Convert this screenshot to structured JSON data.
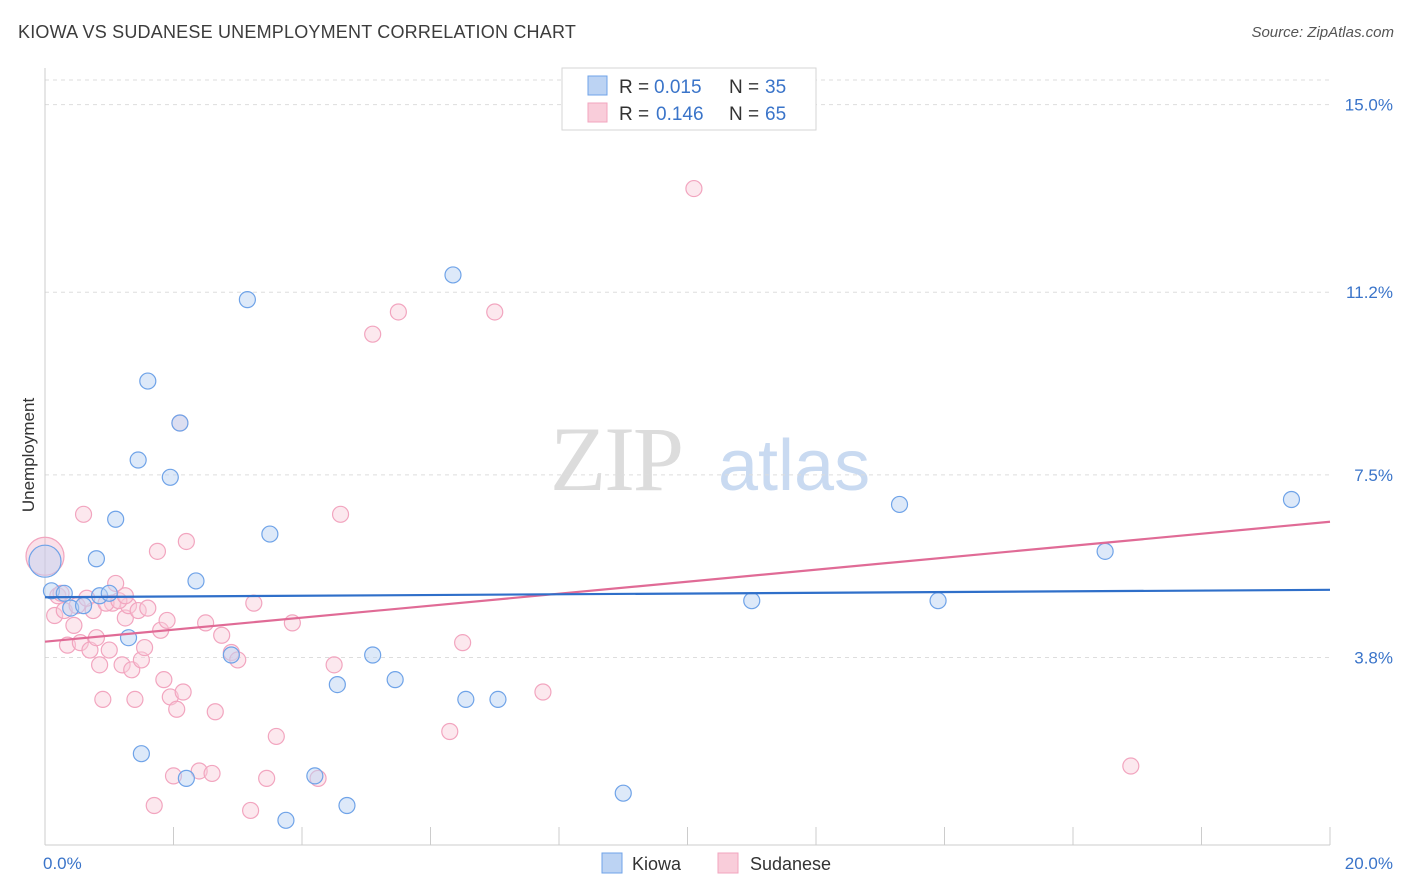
{
  "title": "KIOWA VS SUDANESE UNEMPLOYMENT CORRELATION CHART",
  "source": "Source: ZipAtlas.com",
  "watermark": {
    "zip": "ZIP",
    "atlas": "atlas"
  },
  "chart_data": {
    "type": "scatter",
    "title": "KIOWA VS SUDANESE UNEMPLOYMENT CORRELATION CHART",
    "ylabel": "Unemployment",
    "xlabel": "",
    "xlim": [
      0,
      20
    ],
    "ylim": [
      0,
      15.5
    ],
    "x_tick_labels": [
      "0.0%",
      "20.0%"
    ],
    "y_ticks": [
      3.8,
      7.5,
      11.2,
      15.0
    ],
    "y_tick_labels": [
      "3.8%",
      "7.5%",
      "11.2%",
      "15.0%"
    ],
    "grid": "horizontal dashed",
    "legend_position": "top-center",
    "series": [
      {
        "name": "Kiowa",
        "color": "#6fa3e8",
        "line_color": "#2f6fc9",
        "R": "0.015",
        "N": "35",
        "trend": [
          [
            0,
            5.02
          ],
          [
            20,
            5.17
          ]
        ],
        "points": [
          [
            0.0,
            5.75
          ],
          [
            0.1,
            5.15
          ],
          [
            0.3,
            5.1
          ],
          [
            0.4,
            4.8
          ],
          [
            0.6,
            4.85
          ],
          [
            0.8,
            5.8
          ],
          [
            0.85,
            5.05
          ],
          [
            1.0,
            5.1
          ],
          [
            1.1,
            6.6
          ],
          [
            1.3,
            4.2
          ],
          [
            1.45,
            7.8
          ],
          [
            1.5,
            1.85
          ],
          [
            1.6,
            9.4
          ],
          [
            1.95,
            7.45
          ],
          [
            2.1,
            8.55
          ],
          [
            2.2,
            1.35
          ],
          [
            2.35,
            5.35
          ],
          [
            2.9,
            3.85
          ],
          [
            3.15,
            11.05
          ],
          [
            3.5,
            6.3
          ],
          [
            3.75,
            0.5
          ],
          [
            4.2,
            1.4
          ],
          [
            4.55,
            3.25
          ],
          [
            4.7,
            0.8
          ],
          [
            5.1,
            3.85
          ],
          [
            5.45,
            3.35
          ],
          [
            6.35,
            11.55
          ],
          [
            6.55,
            2.95
          ],
          [
            7.05,
            2.95
          ],
          [
            9.0,
            1.05
          ],
          [
            11.0,
            4.95
          ],
          [
            13.3,
            6.9
          ],
          [
            13.9,
            4.95
          ],
          [
            16.5,
            5.95
          ],
          [
            19.4,
            7.0
          ]
        ]
      },
      {
        "name": "Sudanese",
        "color": "#f2a5bf",
        "line_color": "#e06b96",
        "R": "0.146",
        "N": "65",
        "trend": [
          [
            0,
            4.12
          ],
          [
            20,
            6.55
          ]
        ],
        "points": [
          [
            0.0,
            5.85
          ],
          [
            0.15,
            4.65
          ],
          [
            0.2,
            5.05
          ],
          [
            0.3,
            4.75
          ],
          [
            0.35,
            4.05
          ],
          [
            0.45,
            4.45
          ],
          [
            0.5,
            4.85
          ],
          [
            0.55,
            4.1
          ],
          [
            0.6,
            6.7
          ],
          [
            0.7,
            3.95
          ],
          [
            0.75,
            4.75
          ],
          [
            0.8,
            4.2
          ],
          [
            0.85,
            3.65
          ],
          [
            0.9,
            2.95
          ],
          [
            1.0,
            3.95
          ],
          [
            1.05,
            4.9
          ],
          [
            1.1,
            5.3
          ],
          [
            1.2,
            3.65
          ],
          [
            1.25,
            4.6
          ],
          [
            1.3,
            4.85
          ],
          [
            1.35,
            3.55
          ],
          [
            1.4,
            2.95
          ],
          [
            1.45,
            4.75
          ],
          [
            1.5,
            3.75
          ],
          [
            1.55,
            4.0
          ],
          [
            1.6,
            4.8
          ],
          [
            1.7,
            0.8
          ],
          [
            1.75,
            5.95
          ],
          [
            1.8,
            4.35
          ],
          [
            1.85,
            3.35
          ],
          [
            1.9,
            4.55
          ],
          [
            1.95,
            3.0
          ],
          [
            2.0,
            1.4
          ],
          [
            2.05,
            2.75
          ],
          [
            2.1,
            8.55
          ],
          [
            2.15,
            3.1
          ],
          [
            2.2,
            6.15
          ],
          [
            2.4,
            1.5
          ],
          [
            2.5,
            4.5
          ],
          [
            2.6,
            1.45
          ],
          [
            2.65,
            2.7
          ],
          [
            2.75,
            4.25
          ],
          [
            2.9,
            3.9
          ],
          [
            3.0,
            3.75
          ],
          [
            3.2,
            0.7
          ],
          [
            3.25,
            4.9
          ],
          [
            3.45,
            1.35
          ],
          [
            3.6,
            2.2
          ],
          [
            3.85,
            4.5
          ],
          [
            4.25,
            1.35
          ],
          [
            4.5,
            3.65
          ],
          [
            4.6,
            6.7
          ],
          [
            5.1,
            10.35
          ],
          [
            5.5,
            10.8
          ],
          [
            6.3,
            2.3
          ],
          [
            6.5,
            4.1
          ],
          [
            7.0,
            10.8
          ],
          [
            7.75,
            3.1
          ],
          [
            10.1,
            13.3
          ],
          [
            16.9,
            1.6
          ],
          [
            0.25,
            5.1
          ],
          [
            0.65,
            5.0
          ],
          [
            0.95,
            4.9
          ],
          [
            1.15,
            4.95
          ],
          [
            1.25,
            5.05
          ]
        ]
      }
    ]
  },
  "legend": {
    "kiowa": {
      "r_label": "R = ",
      "r_value": "0.015",
      "n_label": "N = ",
      "n_value": "35"
    },
    "sudanese": {
      "r_label": "R = ",
      "r_value": "0.146",
      "n_label": "N = ",
      "n_value": "65"
    }
  },
  "bottom_legend": {
    "kiowa": "Kiowa",
    "sudanese": "Sudanese"
  }
}
